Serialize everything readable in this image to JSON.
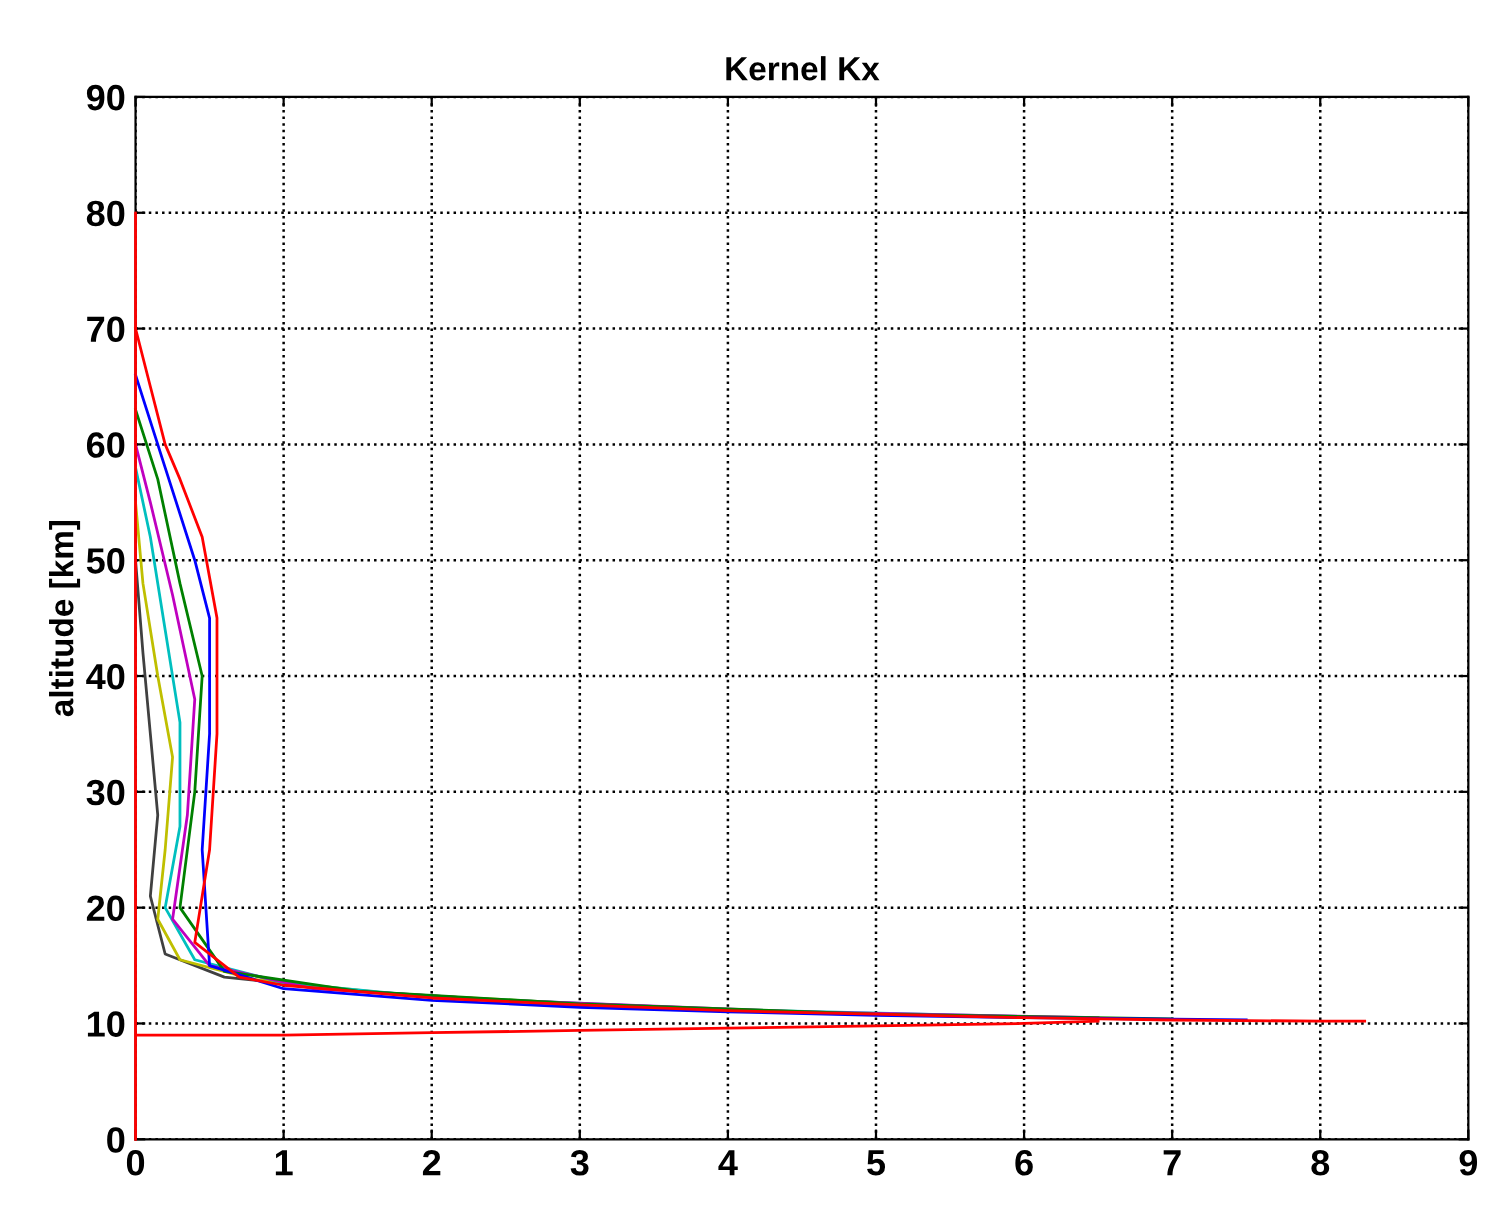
{
  "chart_data": {
    "type": "line",
    "title": "Kernel Kx",
    "ylabel": "altitude [km]",
    "xlim": [
      0,
      9
    ],
    "xticks": [
      0,
      1,
      2,
      3,
      4,
      5,
      6,
      7,
      8,
      9
    ],
    "ylim": [
      0,
      90
    ],
    "yticks": [
      0,
      10,
      20,
      30,
      40,
      50,
      60,
      70,
      80,
      90
    ],
    "grid": true,
    "line_style": "solid",
    "marker": "none",
    "series": [
      {
        "color": "#ff0000",
        "x": [
          0,
          0,
          0,
          1,
          2,
          3,
          4,
          5,
          6,
          6.5
        ],
        "values": [
          0,
          80,
          9,
          9,
          9.2,
          9.4,
          9.6,
          9.8,
          10,
          10.2
        ]
      },
      {
        "color": "#ff0000",
        "x": [
          0,
          0.1,
          0.2,
          0.3,
          0.45,
          0.55,
          0.55,
          0.5,
          0.4,
          0.7,
          1,
          2,
          3,
          4,
          5,
          6,
          7,
          8,
          8.3
        ],
        "values": [
          70,
          65,
          60,
          57,
          52,
          45,
          35,
          25,
          17,
          14,
          13.3,
          12.2,
          11.6,
          11.1,
          10.8,
          10.5,
          10.3,
          10.2,
          10.2
        ]
      },
      {
        "color": "#0000ff",
        "x": [
          0,
          0.2,
          0.4,
          0.5,
          0.5,
          0.45,
          0.5,
          1,
          2,
          3,
          4,
          5,
          6,
          7.5
        ],
        "values": [
          66,
          58,
          50,
          45,
          35,
          25,
          15,
          13,
          12,
          11.4,
          11,
          10.7,
          10.5,
          10.3
        ]
      },
      {
        "color": "#008000",
        "x": [
          0,
          0.15,
          0.3,
          0.45,
          0.4,
          0.3,
          0.6,
          1.5,
          3,
          5,
          7
        ],
        "values": [
          63,
          57,
          48,
          40,
          30,
          20,
          14.5,
          12.8,
          11.7,
          10.8,
          10.4
        ]
      },
      {
        "color": "#bf00bf",
        "x": [
          0,
          0.1,
          0.25,
          0.4,
          0.35,
          0.25,
          0.5,
          1.2,
          2.5,
          4.5,
          6.5
        ],
        "values": [
          60,
          55,
          47,
          38,
          28,
          19,
          15,
          13,
          12,
          11,
          10.5
        ]
      },
      {
        "color": "#00bfbf",
        "x": [
          0,
          0.1,
          0.2,
          0.3,
          0.3,
          0.2,
          0.4,
          1,
          2,
          4,
          6
        ],
        "values": [
          58,
          52,
          44,
          36,
          27,
          20,
          15.5,
          13.5,
          12.3,
          11.2,
          10.6
        ]
      },
      {
        "color": "#bfbf00",
        "x": [
          0,
          0.05,
          0.15,
          0.25,
          0.2,
          0.15,
          0.3,
          0.8,
          1.8,
          3.5
        ],
        "values": [
          55,
          48,
          40,
          33,
          25,
          19,
          15.5,
          13.8,
          12.5,
          11.4
        ]
      },
      {
        "color": "#404040",
        "x": [
          0,
          0.05,
          0.1,
          0.15,
          0.1,
          0.2,
          0.6,
          1.5,
          3
        ],
        "values": [
          50,
          42,
          35,
          28,
          21,
          16,
          14,
          12.8,
          11.6
        ]
      }
    ]
  }
}
